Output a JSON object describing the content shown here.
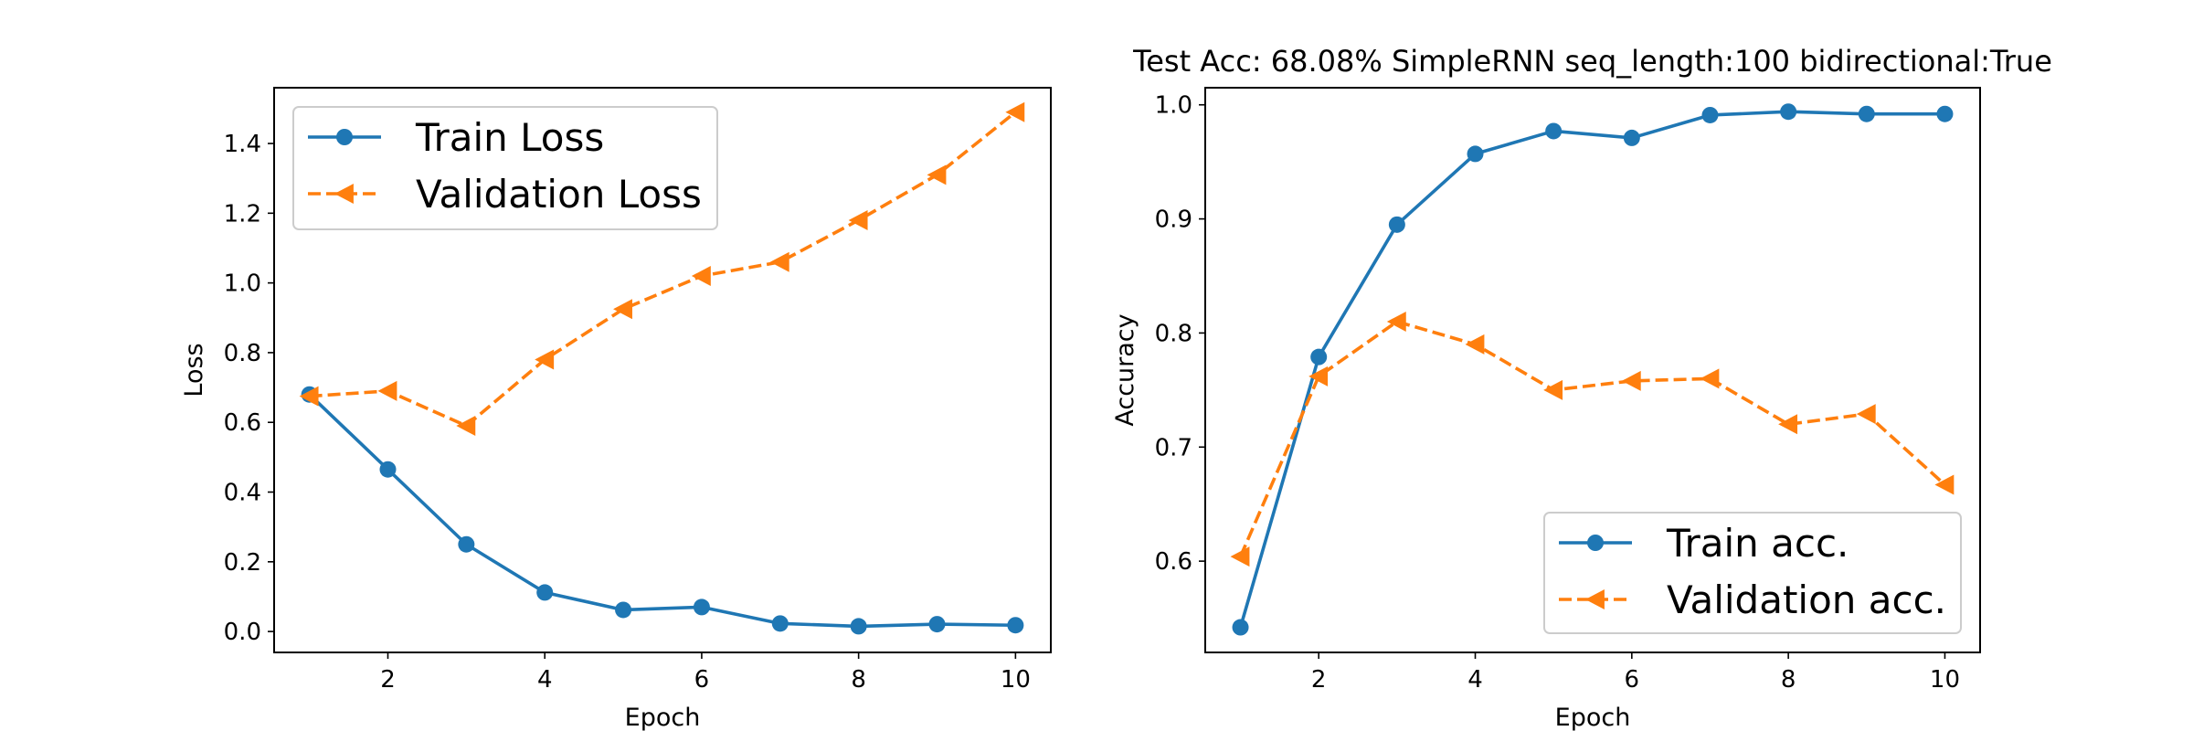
{
  "colors": {
    "train": "#1f77b4",
    "validation": "#ff7f0e"
  },
  "chart_data": [
    {
      "type": "line",
      "title": "",
      "xlabel": "Epoch",
      "ylabel": "Loss",
      "xlim": [
        0.55,
        10.45
      ],
      "ylim": [
        -0.06,
        1.56
      ],
      "xticks": [
        2,
        4,
        6,
        8,
        10
      ],
      "yticks": [
        0.0,
        0.2,
        0.4,
        0.6,
        0.8,
        1.0,
        1.2,
        1.4
      ],
      "ytick_labels": [
        "0.0",
        "0.2",
        "0.4",
        "0.6",
        "0.8",
        "1.0",
        "1.2",
        "1.4"
      ],
      "grid": false,
      "legend_position": "upper left",
      "x": [
        1,
        2,
        3,
        4,
        5,
        6,
        7,
        8,
        9,
        10
      ],
      "series": [
        {
          "name": "Train Loss",
          "marker": "circle",
          "linestyle": "solid",
          "color": "#1f77b4",
          "values": [
            0.68,
            0.465,
            0.25,
            0.112,
            0.062,
            0.07,
            0.023,
            0.015,
            0.021,
            0.018
          ]
        },
        {
          "name": "Validation Loss",
          "marker": "triangle-left",
          "linestyle": "dashed",
          "color": "#ff7f0e",
          "values": [
            0.675,
            0.69,
            0.59,
            0.78,
            0.925,
            1.02,
            1.06,
            1.18,
            1.31,
            1.49
          ]
        }
      ]
    },
    {
      "type": "line",
      "title": "Test Acc: 68.08% SimpleRNN seq_length:100 bidirectional:True",
      "xlabel": "Epoch",
      "ylabel": "Accuracy",
      "xlim": [
        0.55,
        10.45
      ],
      "ylim": [
        0.52,
        1.015
      ],
      "xticks": [
        2,
        4,
        6,
        8,
        10
      ],
      "yticks": [
        0.6,
        0.7,
        0.8,
        0.9,
        1.0
      ],
      "ytick_labels": [
        "0.6",
        "0.7",
        "0.8",
        "0.9",
        "1.0"
      ],
      "grid": false,
      "legend_position": "lower right",
      "x": [
        1,
        2,
        3,
        4,
        5,
        6,
        7,
        8,
        9,
        10
      ],
      "series": [
        {
          "name": "Train acc.",
          "marker": "circle",
          "linestyle": "solid",
          "color": "#1f77b4",
          "values": [
            0.542,
            0.779,
            0.895,
            0.957,
            0.977,
            0.971,
            0.991,
            0.994,
            0.992,
            0.992
          ]
        },
        {
          "name": "Validation acc.",
          "marker": "triangle-left",
          "linestyle": "dashed",
          "color": "#ff7f0e",
          "values": [
            0.604,
            0.762,
            0.81,
            0.79,
            0.75,
            0.758,
            0.76,
            0.72,
            0.729,
            0.667
          ]
        }
      ]
    }
  ]
}
